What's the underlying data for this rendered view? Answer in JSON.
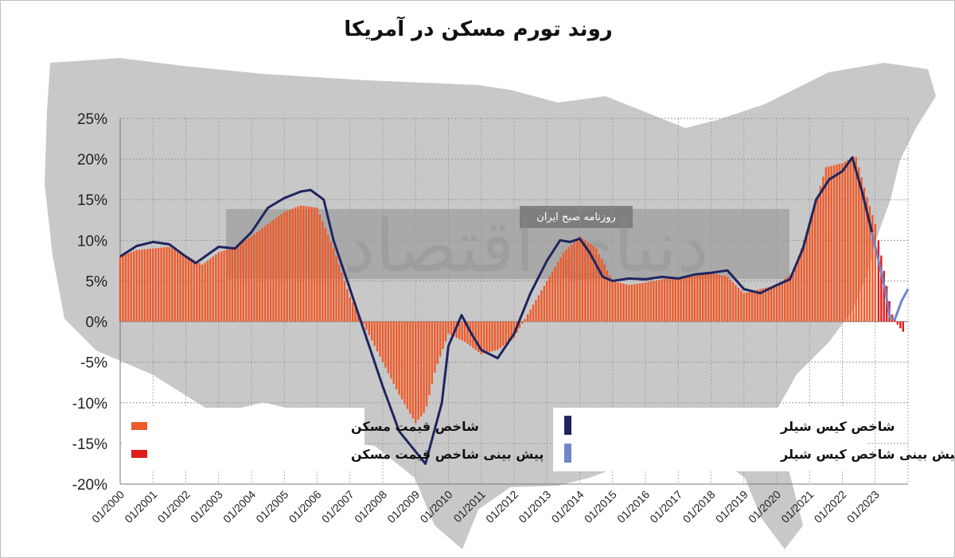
{
  "title": "روند تورم مسکن در آمریکا",
  "watermark": {
    "tagline": "روزنامه صبح ایران",
    "brand": "دنیای اقتصاد"
  },
  "colors": {
    "bars_actual": "#f05a28",
    "bars_forecast": "#e01b1b",
    "line_actual": "#1f2560",
    "line_forecast": "#6f86c8",
    "map": "#c8c8c8",
    "grid": "#9a9a9a"
  },
  "legend_left": [
    {
      "label": "شاخص قیمت مسکن",
      "color": "#f05a28"
    },
    {
      "label": "پیش بینی شاخص قیمت مسکن",
      "color": "#e01b1b"
    }
  ],
  "legend_right": [
    {
      "label": "شاخص کیس شیلر",
      "color": "#1f2560"
    },
    {
      "label": "پیش بینی شاخص کیس شیلر",
      "color": "#6f86c8"
    }
  ],
  "chart_data": {
    "type": "bar",
    "xlabel": "",
    "ylabel": "",
    "ylim": [
      -20,
      25
    ],
    "yticks": [
      "25%",
      "20%",
      "15%",
      "10%",
      "5%",
      "0%",
      "-5%",
      "-10%",
      "-15%",
      "-20%"
    ],
    "x_tick_labels": [
      "01/2000",
      "01/2001",
      "01/2002",
      "01/2003",
      "01/2004",
      "01/2005",
      "01/2006",
      "01/2007",
      "01/2008",
      "01/2009",
      "01/2010",
      "01/2011",
      "01/2012",
      "01/2013",
      "01/2014",
      "01/2015",
      "01/2016",
      "01/2017",
      "01/2018",
      "01/2019",
      "01/2020",
      "01/2021",
      "01/2022",
      "01/2023"
    ],
    "grid": true,
    "series": [
      {
        "name": "شاخص قیمت مسکن",
        "kind": "bar",
        "points": [
          [
            2000.0,
            8
          ],
          [
            2000.5,
            8.8
          ],
          [
            2001.0,
            9
          ],
          [
            2001.5,
            9.2
          ],
          [
            2002.0,
            8.2
          ],
          [
            2002.5,
            7
          ],
          [
            2003.0,
            8.5
          ],
          [
            2003.5,
            9.2
          ],
          [
            2004.0,
            10.5
          ],
          [
            2004.5,
            12
          ],
          [
            2005.0,
            13.5
          ],
          [
            2005.5,
            14.3
          ],
          [
            2006.0,
            14
          ],
          [
            2006.5,
            9
          ],
          [
            2007.0,
            3
          ],
          [
            2007.5,
            -1
          ],
          [
            2008.0,
            -5
          ],
          [
            2008.5,
            -9
          ],
          [
            2009.0,
            -12.5
          ],
          [
            2009.3,
            -11
          ],
          [
            2009.6,
            -6
          ],
          [
            2010.0,
            -1.5
          ],
          [
            2010.5,
            -2.5
          ],
          [
            2011.0,
            -4
          ],
          [
            2011.5,
            -3.5
          ],
          [
            2012.0,
            -2
          ],
          [
            2012.5,
            1.5
          ],
          [
            2013.0,
            5
          ],
          [
            2013.5,
            8.5
          ],
          [
            2014.0,
            10.5
          ],
          [
            2014.5,
            9
          ],
          [
            2015.0,
            5
          ],
          [
            2015.5,
            4.5
          ],
          [
            2016.0,
            4.8
          ],
          [
            2016.5,
            5.2
          ],
          [
            2017.0,
            5.4
          ],
          [
            2017.5,
            5.6
          ],
          [
            2018.0,
            6
          ],
          [
            2018.5,
            5.5
          ],
          [
            2019.0,
            3.5
          ],
          [
            2019.5,
            4
          ],
          [
            2020.0,
            4.5
          ],
          [
            2020.5,
            6
          ],
          [
            2021.0,
            12
          ],
          [
            2021.5,
            19
          ],
          [
            2022.0,
            19.5
          ],
          [
            2022.4,
            20.5
          ],
          [
            2022.7,
            16
          ],
          [
            2023.0,
            12
          ]
        ]
      },
      {
        "name": "پیش بینی شاخص قیمت مسکن",
        "kind": "bar",
        "points": [
          [
            2023.1,
            10
          ],
          [
            2023.3,
            5.5
          ],
          [
            2023.5,
            1
          ],
          [
            2023.7,
            -0.5
          ],
          [
            2023.9,
            -1.5
          ]
        ]
      },
      {
        "name": "شاخص کیس شیلر",
        "kind": "line",
        "points": [
          [
            2000.0,
            8
          ],
          [
            2000.5,
            9.3
          ],
          [
            2001.0,
            9.8
          ],
          [
            2001.5,
            9.5
          ],
          [
            2002.0,
            8
          ],
          [
            2002.3,
            7.2
          ],
          [
            2003.0,
            9.2
          ],
          [
            2003.5,
            9
          ],
          [
            2004.0,
            11
          ],
          [
            2004.5,
            14
          ],
          [
            2005.0,
            15.2
          ],
          [
            2005.5,
            16
          ],
          [
            2005.8,
            16.2
          ],
          [
            2006.2,
            15
          ],
          [
            2006.5,
            10
          ],
          [
            2007.0,
            4
          ],
          [
            2007.5,
            -2
          ],
          [
            2008.0,
            -8
          ],
          [
            2008.5,
            -13.5
          ],
          [
            2008.8,
            -15
          ],
          [
            2009.3,
            -17.5
          ],
          [
            2009.8,
            -10
          ],
          [
            2010.0,
            -3
          ],
          [
            2010.4,
            0.8
          ],
          [
            2010.7,
            -1.5
          ],
          [
            2011.0,
            -3.5
          ],
          [
            2011.5,
            -4.5
          ],
          [
            2012.0,
            -1.5
          ],
          [
            2012.5,
            3.5
          ],
          [
            2013.0,
            7.5
          ],
          [
            2013.4,
            10
          ],
          [
            2013.7,
            9.8
          ],
          [
            2014.0,
            10.2
          ],
          [
            2014.3,
            8.5
          ],
          [
            2014.7,
            5.5
          ],
          [
            2015.0,
            5
          ],
          [
            2015.5,
            5.3
          ],
          [
            2016.0,
            5.2
          ],
          [
            2016.5,
            5.5
          ],
          [
            2017.0,
            5.3
          ],
          [
            2017.5,
            5.8
          ],
          [
            2018.0,
            6
          ],
          [
            2018.5,
            6.3
          ],
          [
            2019.0,
            4
          ],
          [
            2019.5,
            3.5
          ],
          [
            2020.0,
            4.5
          ],
          [
            2020.4,
            5.2
          ],
          [
            2020.8,
            9
          ],
          [
            2021.2,
            15
          ],
          [
            2021.6,
            17.5
          ],
          [
            2022.0,
            18.5
          ],
          [
            2022.3,
            20.2
          ],
          [
            2022.6,
            16
          ],
          [
            2022.9,
            11
          ]
        ]
      },
      {
        "name": "پیش بینی شاخص کیس شیلر",
        "kind": "line",
        "points": [
          [
            2022.9,
            11
          ],
          [
            2023.1,
            7.5
          ],
          [
            2023.3,
            4
          ],
          [
            2023.45,
            0.5
          ],
          [
            2023.6,
            0.3
          ],
          [
            2023.8,
            2.5
          ],
          [
            2024.0,
            4
          ]
        ]
      }
    ]
  }
}
